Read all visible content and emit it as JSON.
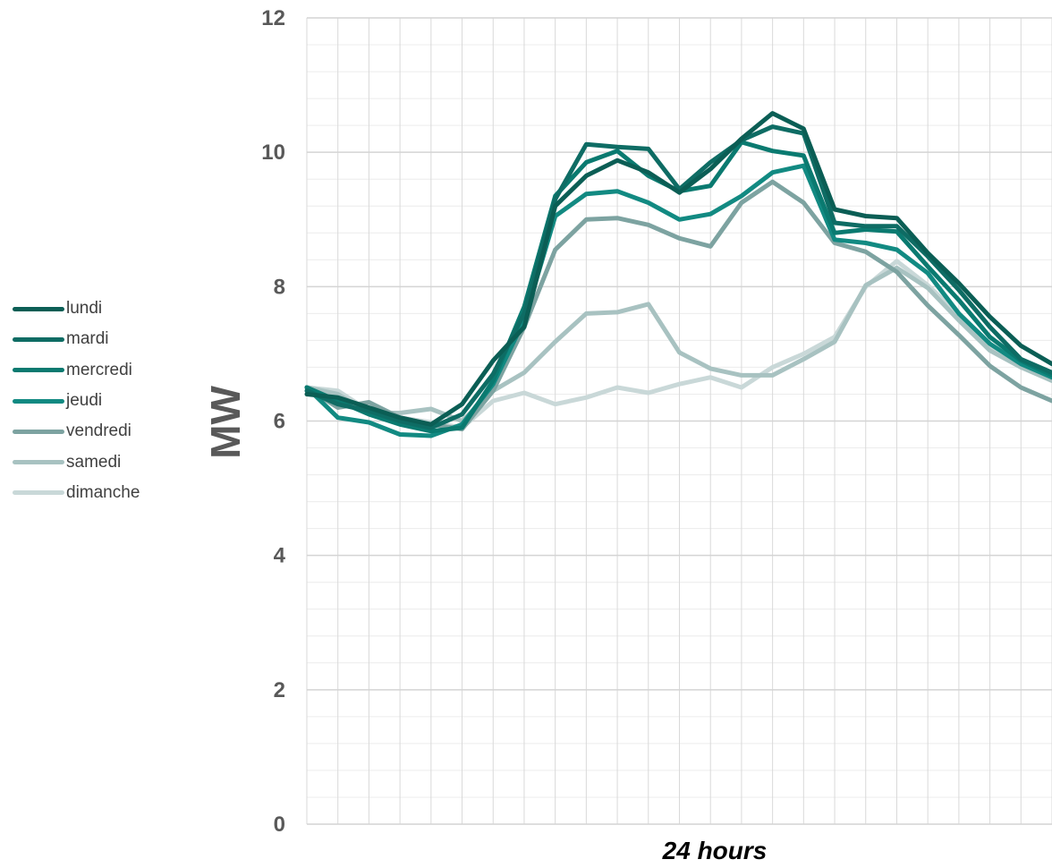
{
  "chart_data": {
    "type": "line",
    "title": "",
    "xlabel": "24 hours",
    "ylabel": "MW",
    "ylim": [
      0,
      12
    ],
    "y_ticks": [
      "0",
      "2",
      "4",
      "6",
      "8",
      "10",
      "12"
    ],
    "grid": true,
    "legend_position": "left",
    "x": [
      0,
      1,
      2,
      3,
      4,
      5,
      6,
      7,
      8,
      9,
      10,
      11,
      12,
      13,
      14,
      15,
      16,
      17,
      18,
      19,
      20,
      21,
      22,
      23,
      24
    ],
    "series": [
      {
        "name": "lundi",
        "color": "#0b5e55",
        "values": [
          6.4,
          6.35,
          6.2,
          6.05,
          5.95,
          6.25,
          6.9,
          7.4,
          9.2,
          9.65,
          9.88,
          9.7,
          9.4,
          9.75,
          10.2,
          10.58,
          10.35,
          9.15,
          9.05,
          9.02,
          8.5,
          8.05,
          7.55,
          7.12,
          6.85
        ]
      },
      {
        "name": "mardi",
        "color": "#0e6c64",
        "values": [
          6.45,
          6.25,
          6.15,
          6.0,
          5.9,
          6.1,
          6.7,
          7.6,
          9.3,
          10.12,
          10.08,
          10.05,
          9.45,
          9.85,
          10.18,
          10.38,
          10.28,
          8.95,
          8.9,
          8.9,
          8.45,
          7.95,
          7.4,
          6.92,
          6.72
        ]
      },
      {
        "name": "mercredi",
        "color": "#0a7a70",
        "values": [
          6.5,
          6.3,
          6.1,
          5.95,
          5.85,
          5.9,
          6.6,
          7.7,
          9.35,
          9.85,
          10.02,
          9.65,
          9.42,
          9.5,
          10.15,
          10.02,
          9.95,
          8.8,
          8.85,
          8.82,
          8.3,
          7.8,
          7.25,
          6.9,
          6.68
        ]
      },
      {
        "name": "jeudi",
        "color": "#128a82",
        "values": [
          6.5,
          6.05,
          5.98,
          5.8,
          5.78,
          5.95,
          6.55,
          7.5,
          9.05,
          9.38,
          9.42,
          9.25,
          9.0,
          9.08,
          9.35,
          9.7,
          9.8,
          8.7,
          8.65,
          8.55,
          8.2,
          7.6,
          7.15,
          6.85,
          6.65
        ]
      },
      {
        "name": "vendredi",
        "color": "#7da3a1",
        "values": [
          6.5,
          6.2,
          6.28,
          6.05,
          5.95,
          5.88,
          6.45,
          7.4,
          8.55,
          9.0,
          9.02,
          8.92,
          8.72,
          8.6,
          9.25,
          9.56,
          9.25,
          8.65,
          8.52,
          8.22,
          7.72,
          7.28,
          6.82,
          6.5,
          6.3
        ]
      },
      {
        "name": "samedi",
        "color": "#a8c2c1",
        "values": [
          6.5,
          6.4,
          6.12,
          6.12,
          6.18,
          6.0,
          6.45,
          6.72,
          7.18,
          7.6,
          7.62,
          7.74,
          7.02,
          6.78,
          6.68,
          6.68,
          6.92,
          7.18,
          8.02,
          8.28,
          7.98,
          7.5,
          7.05,
          6.8,
          6.6
        ]
      },
      {
        "name": "dimanche",
        "color": "#c9d8d8",
        "values": [
          6.5,
          6.45,
          6.15,
          6.05,
          5.98,
          5.9,
          6.3,
          6.42,
          6.25,
          6.35,
          6.5,
          6.42,
          6.55,
          6.65,
          6.5,
          6.8,
          7.0,
          7.25,
          8.0,
          8.38,
          8.02,
          7.58,
          7.12,
          6.82,
          6.6
        ]
      }
    ]
  }
}
